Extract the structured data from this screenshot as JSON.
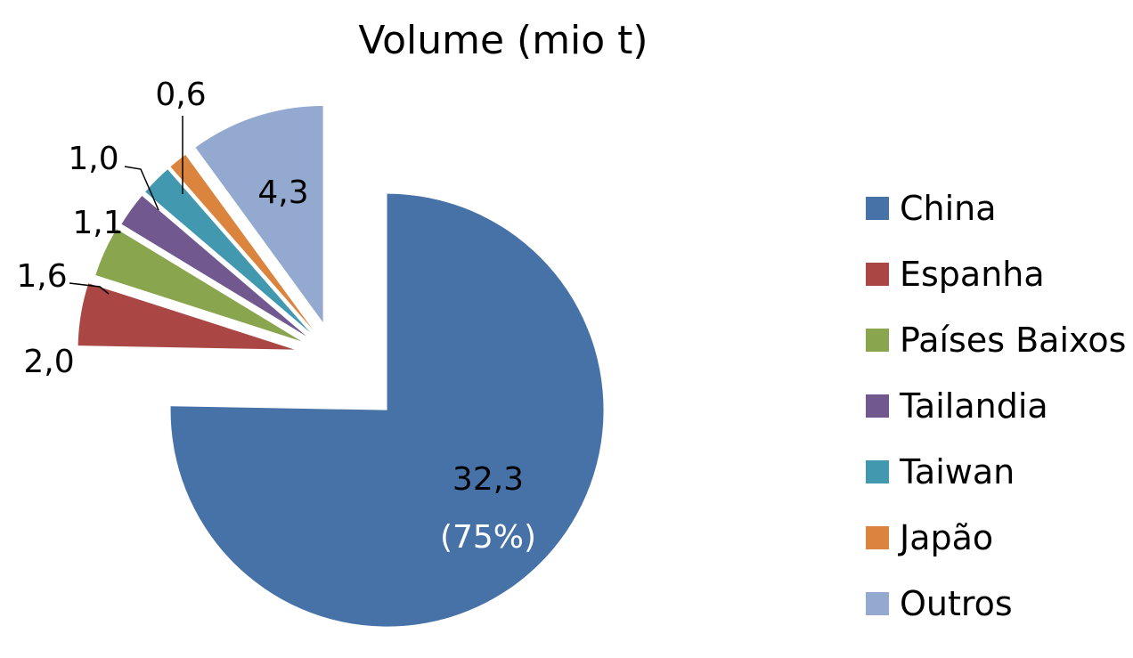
{
  "chart_data": {
    "type": "pie",
    "title": "Volume (mio t)",
    "slices": [
      {
        "name": "China",
        "value": 32.3,
        "label": "32,3",
        "sublabel": "(75%)",
        "color": "#4672A8"
      },
      {
        "name": "Espanha",
        "value": 2.0,
        "label": "2,0",
        "color": "#AA4643"
      },
      {
        "name": "Países Baixos",
        "value": 1.6,
        "label": "1,6",
        "color": "#89A54E"
      },
      {
        "name": "Tailandia",
        "value": 1.1,
        "label": "1,1",
        "color": "#71588F"
      },
      {
        "name": "Taiwan",
        "value": 1.0,
        "label": "1,0",
        "color": "#4198AF"
      },
      {
        "name": "Japão",
        "value": 0.6,
        "label": "0,6",
        "color": "#DB843D"
      },
      {
        "name": "Outros",
        "value": 4.3,
        "label": "4,3",
        "color": "#93A9CF"
      }
    ],
    "legend_position": "right"
  }
}
